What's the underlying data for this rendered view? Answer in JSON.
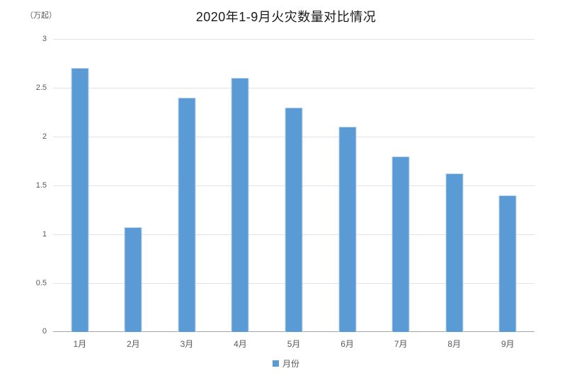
{
  "chart_data": {
    "type": "bar",
    "title": "2020年1-9月火灾数量对比情况",
    "unit_label": "（万起）",
    "categories": [
      "1月",
      "2月",
      "3月",
      "4月",
      "5月",
      "6月",
      "7月",
      "8月",
      "9月"
    ],
    "values": [
      2.7,
      1.07,
      2.4,
      2.6,
      2.3,
      2.1,
      1.8,
      1.62,
      1.4
    ],
    "series_name": "月份",
    "legend_entries": [
      "月份"
    ],
    "legend_position": "bottom",
    "ylim": [
      0,
      3
    ],
    "ytick_labels": [
      "3",
      "2.5",
      "2",
      "1.5",
      "1",
      "0.5",
      "0"
    ],
    "ytick_values": [
      3,
      2.5,
      2,
      1.5,
      1,
      0.5,
      0
    ],
    "grid": true,
    "xlabel": "",
    "ylabel": "",
    "colors": {
      "bar_fill": "#5b9bd5",
      "bar_edge": "#bcd4ec",
      "gridline": "#e2e2e2",
      "axis_line": "#a6a6a6",
      "tick_text": "#595959",
      "title_text": "#1a1a1a"
    }
  }
}
